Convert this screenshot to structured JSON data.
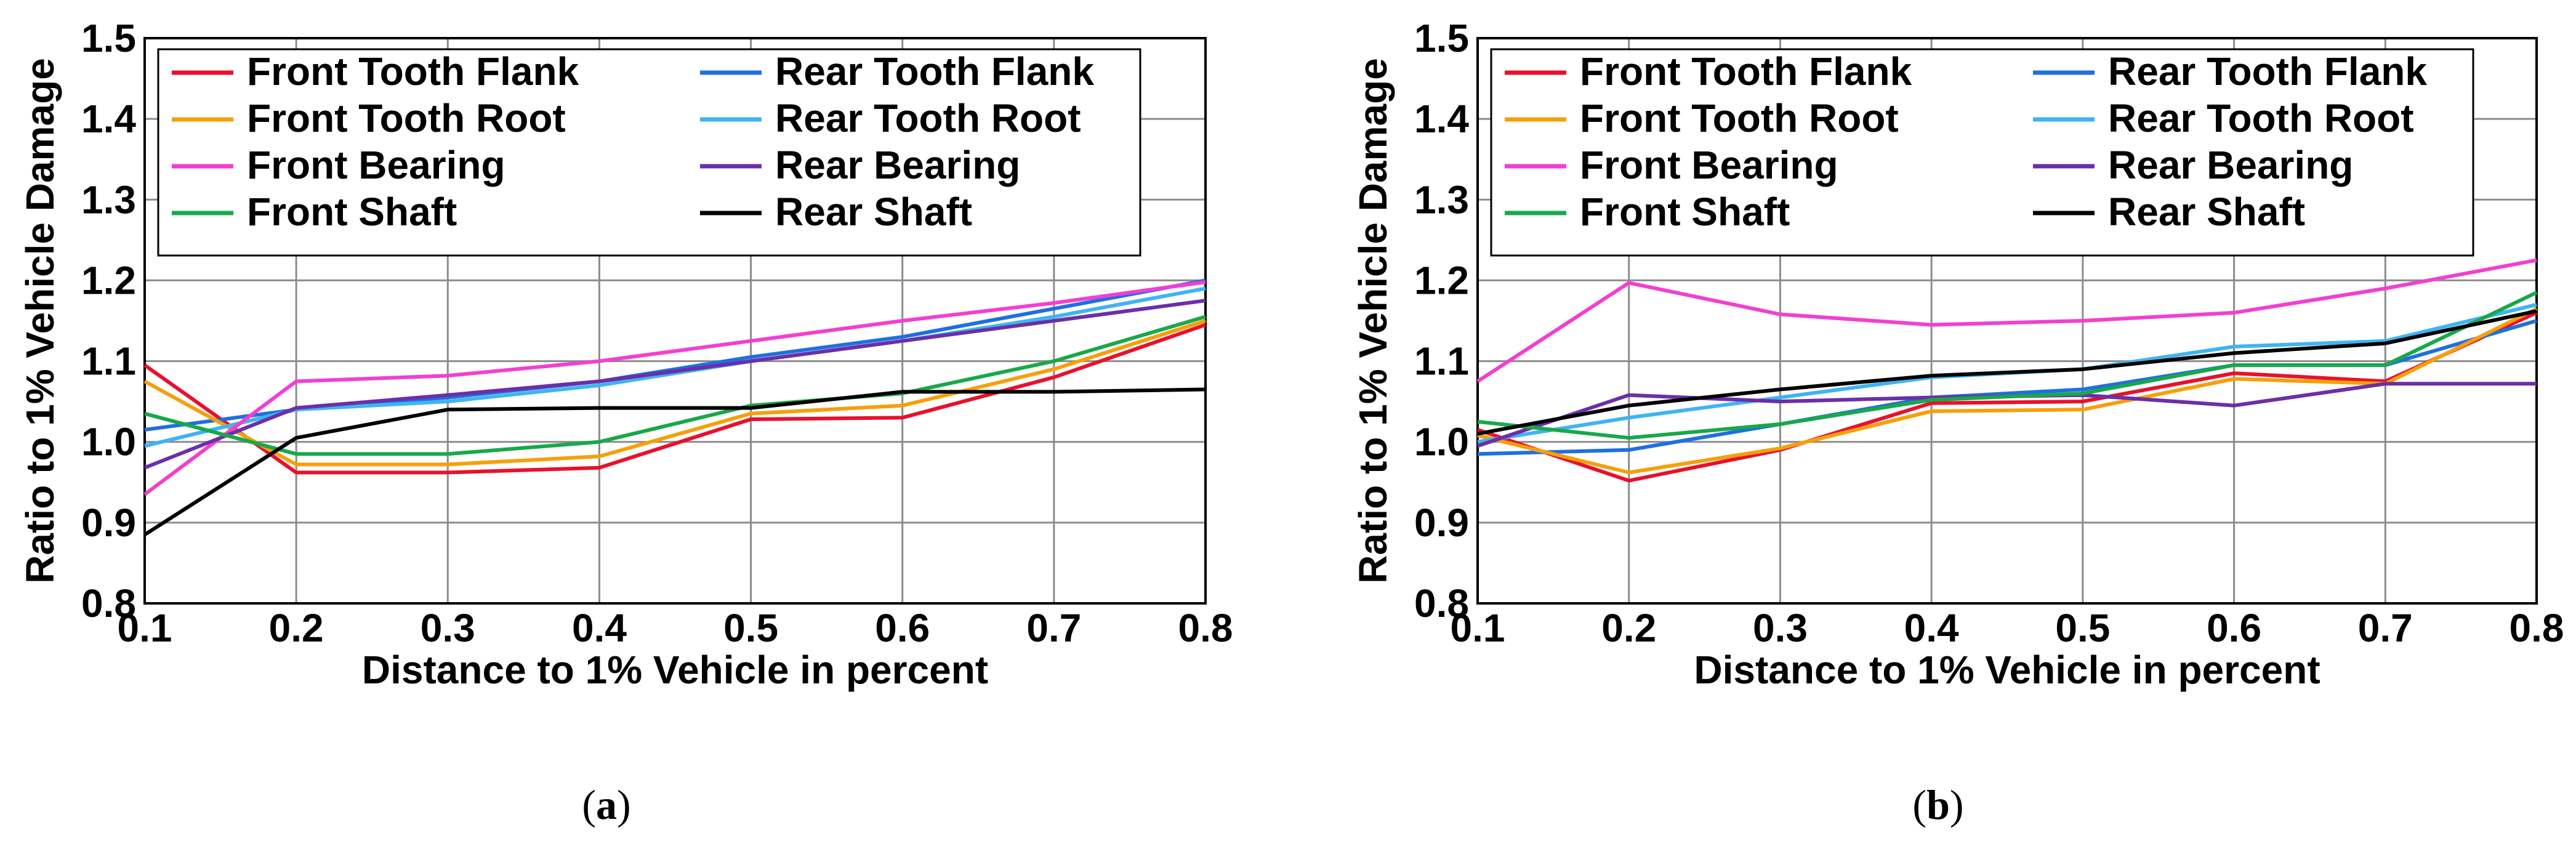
{
  "chart_data": [
    {
      "type": "line",
      "caption_letter": "a",
      "xlabel": "Distance to 1% Vehicle in percent",
      "ylabel": "Ratio to 1% Vehicle Damage",
      "xlim": [
        0.1,
        0.8
      ],
      "ylim": [
        0.8,
        1.5
      ],
      "grid": true,
      "legend_position": "top-left",
      "x_ticks": [
        "0.1",
        "0.2",
        "0.3",
        "0.4",
        "0.5",
        "0.6",
        "0.7",
        "0.8"
      ],
      "y_ticks": [
        "0.8",
        "0.9",
        "1.0",
        "1.1",
        "1.2",
        "1.3",
        "1.4",
        "1.5"
      ],
      "x": [
        0.1,
        0.2,
        0.3,
        0.4,
        0.5,
        0.6,
        0.7,
        0.8
      ],
      "series": [
        {
          "name": "Front Tooth Flank",
          "color": "#e8112d",
          "values": [
            1.095,
            0.962,
            0.962,
            0.968,
            1.028,
            1.03,
            1.08,
            1.145
          ]
        },
        {
          "name": "Rear Tooth Flank",
          "color": "#1f6fe0",
          "values": [
            1.015,
            1.04,
            1.055,
            1.075,
            1.105,
            1.13,
            1.165,
            1.2
          ]
        },
        {
          "name": "Front Tooth Root",
          "color": "#f5a00a",
          "values": [
            1.075,
            0.972,
            0.972,
            0.982,
            1.035,
            1.045,
            1.09,
            1.15
          ]
        },
        {
          "name": "Rear Tooth Root",
          "color": "#3fb4f2",
          "values": [
            0.995,
            1.04,
            1.05,
            1.07,
            1.1,
            1.125,
            1.155,
            1.19
          ]
        },
        {
          "name": "Front Bearing",
          "color": "#f23fd2",
          "values": [
            0.935,
            1.075,
            1.082,
            1.1,
            1.125,
            1.15,
            1.172,
            1.198
          ]
        },
        {
          "name": "Rear Bearing",
          "color": "#6b2fa8",
          "values": [
            0.968,
            1.042,
            1.058,
            1.075,
            1.1,
            1.125,
            1.15,
            1.175
          ]
        },
        {
          "name": "Front Shaft",
          "color": "#18a84a",
          "values": [
            1.035,
            0.985,
            0.985,
            1.0,
            1.045,
            1.06,
            1.1,
            1.155
          ]
        },
        {
          "name": "Rear Shaft",
          "color": "#000000",
          "values": [
            0.885,
            1.005,
            1.04,
            1.042,
            1.042,
            1.062,
            1.062,
            1.065
          ]
        }
      ]
    },
    {
      "type": "line",
      "caption_letter": "b",
      "xlabel": "Distance to 1% Vehicle in percent",
      "ylabel": "Ratio to 1% Vehicle Damage",
      "xlim": [
        0.1,
        0.8
      ],
      "ylim": [
        0.8,
        1.5
      ],
      "grid": true,
      "legend_position": "top-left",
      "x_ticks": [
        "0.1",
        "0.2",
        "0.3",
        "0.4",
        "0.5",
        "0.6",
        "0.7",
        "0.8"
      ],
      "y_ticks": [
        "0.8",
        "0.9",
        "1.0",
        "1.1",
        "1.2",
        "1.3",
        "1.4",
        "1.5"
      ],
      "x": [
        0.1,
        0.2,
        0.3,
        0.4,
        0.5,
        0.6,
        0.7,
        0.8
      ],
      "series": [
        {
          "name": "Front Tooth Flank",
          "color": "#e8112d",
          "values": [
            1.015,
            0.952,
            0.99,
            1.048,
            1.05,
            1.085,
            1.075,
            1.16
          ]
        },
        {
          "name": "Rear Tooth Flank",
          "color": "#1f6fe0",
          "values": [
            0.985,
            0.99,
            1.022,
            1.055,
            1.065,
            1.095,
            1.095,
            1.15
          ]
        },
        {
          "name": "Front Tooth Root",
          "color": "#f5a00a",
          "values": [
            1.008,
            0.962,
            0.992,
            1.038,
            1.04,
            1.078,
            1.072,
            1.165
          ]
        },
        {
          "name": "Rear Tooth Root",
          "color": "#3fb4f2",
          "values": [
            1.0,
            1.03,
            1.055,
            1.08,
            1.09,
            1.118,
            1.125,
            1.17
          ]
        },
        {
          "name": "Front Bearing",
          "color": "#f23fd2",
          "values": [
            1.075,
            1.197,
            1.158,
            1.145,
            1.15,
            1.16,
            1.19,
            1.225
          ]
        },
        {
          "name": "Rear Bearing",
          "color": "#6b2fa8",
          "values": [
            0.995,
            1.058,
            1.05,
            1.055,
            1.058,
            1.045,
            1.072,
            1.072
          ]
        },
        {
          "name": "Front Shaft",
          "color": "#18a84a",
          "values": [
            1.025,
            1.005,
            1.022,
            1.052,
            1.06,
            1.095,
            1.095,
            1.185
          ]
        },
        {
          "name": "Rear Shaft",
          "color": "#000000",
          "values": [
            1.01,
            1.045,
            1.065,
            1.082,
            1.09,
            1.11,
            1.122,
            1.162
          ]
        }
      ]
    }
  ]
}
